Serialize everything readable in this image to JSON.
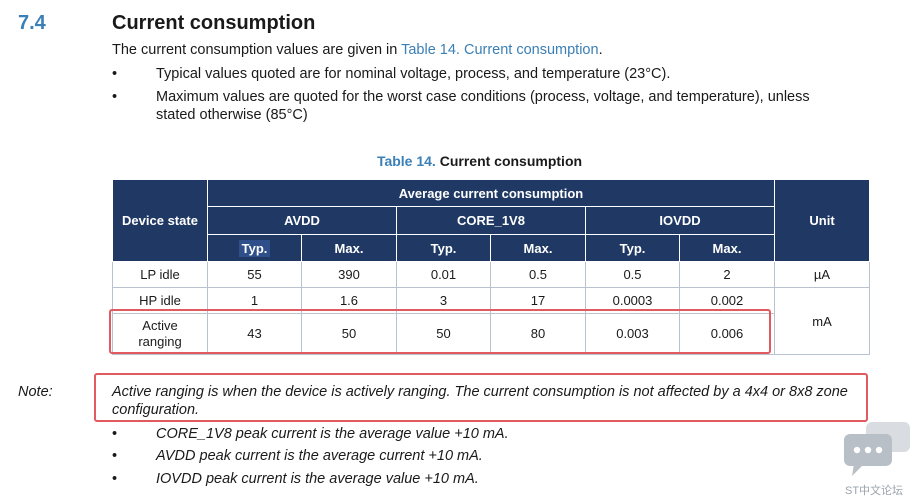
{
  "section": {
    "number": "7.4",
    "title": "Current consumption"
  },
  "intro": {
    "prefix": "The current consumption values are given in ",
    "link": "Table 14. Current consumption",
    "suffix": "."
  },
  "bullets": [
    "Typical values quoted are for nominal voltage, process, and temperature (23°C).",
    "Maximum values are quoted for the worst case conditions (process, voltage, and temperature), unless stated otherwise (85°C)"
  ],
  "bullet_symbol": "•",
  "caption": {
    "label": "Table 14.",
    "title": "Current consumption"
  },
  "table": {
    "device_state_header": "Device state",
    "group_header": "Average current consumption",
    "unit_header": "Unit",
    "supplies": [
      "AVDD",
      "CORE_1V8",
      "IOVDD"
    ],
    "sub_headers": [
      "Typ.",
      "Max.",
      "Typ.",
      "Max.",
      "Typ.",
      "Max."
    ],
    "rows": [
      {
        "state": "LP idle",
        "values": [
          "55",
          "390",
          "0.01",
          "0.5",
          "0.5",
          "2"
        ],
        "unit": "µA"
      },
      {
        "state": "HP idle",
        "values": [
          "1",
          "1.6",
          "3",
          "17",
          "0.0003",
          "0.002"
        ],
        "unit": "mA"
      },
      {
        "state_line1": "Active",
        "state_line2": "ranging",
        "values": [
          "43",
          "50",
          "50",
          "80",
          "0.003",
          "0.006"
        ]
      }
    ]
  },
  "note": {
    "label": "Note:",
    "text": "Active ranging is when the device is actively ranging. The current consumption is not affected by a 4x4 or 8x8 zone configuration."
  },
  "note_bullets": [
    "CORE_1V8 peak current is the average value +10 mA.",
    "AVDD peak current is the average current +10 mA.",
    "IOVDD peak current is the average value +10 mA."
  ],
  "highlight_color": "#e05a5f",
  "header_color": "#1f3864",
  "accent_color": "#3a7fb6",
  "watermark": {
    "icon": "chat-bubbles-icon",
    "text": "ST中文论坛"
  }
}
